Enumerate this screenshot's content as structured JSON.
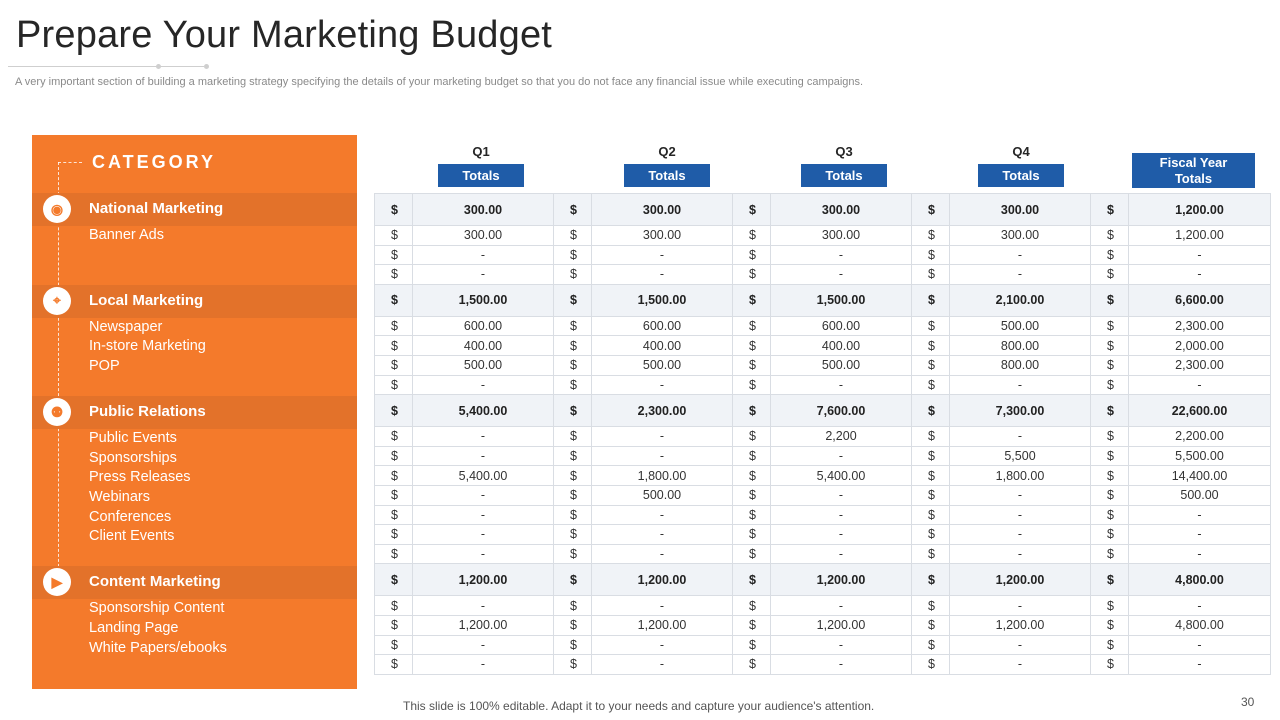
{
  "title": "Prepare Your Marketing Budget",
  "subtitle": "A very  important section of building a marketing strategy specifying the details of your  marketing budget so that you  do not face any financial issue while executing campaigns.",
  "category_heading": "CATEGORY",
  "columns": [
    {
      "quarter": "Q1",
      "label": "Totals"
    },
    {
      "quarter": "Q2",
      "label": "Totals"
    },
    {
      "quarter": "Q3",
      "label": "Totals"
    },
    {
      "quarter": "Q4",
      "label": "Totals"
    }
  ],
  "fiscal_label_line1": "Fiscal Year",
  "fiscal_label_line2": "Totals",
  "currency_symbol": "$",
  "accent_colors": {
    "panel": "#f47a2b",
    "header_button": "#1f5ca8"
  },
  "categories": [
    {
      "name": "National Marketing",
      "icon": "globe-megaphone-icon",
      "totals": [
        "300.00",
        "300.00",
        "300.00",
        "300.00",
        "1,200.00"
      ],
      "rows": [
        {
          "label": "Banner Ads",
          "values": [
            "300.00",
            "300.00",
            "300.00",
            "300.00",
            "1,200.00"
          ]
        },
        {
          "label": "",
          "values": [
            "-",
            "-",
            "-",
            "-",
            "-"
          ]
        },
        {
          "label": "",
          "values": [
            "-",
            "-",
            "-",
            "-",
            "-"
          ]
        }
      ]
    },
    {
      "name": "Local Marketing",
      "icon": "location-network-icon",
      "totals": [
        "1,500.00",
        "1,500.00",
        "1,500.00",
        "2,100.00",
        "6,600.00"
      ],
      "rows": [
        {
          "label": "Newspaper",
          "values": [
            "600.00",
            "600.00",
            "600.00",
            "500.00",
            "2,300.00"
          ]
        },
        {
          "label": "In-store Marketing",
          "values": [
            "400.00",
            "400.00",
            "400.00",
            "800.00",
            "2,000.00"
          ]
        },
        {
          "label": "POP",
          "values": [
            "500.00",
            "500.00",
            "500.00",
            "800.00",
            "2,300.00"
          ]
        },
        {
          "label": "",
          "values": [
            "-",
            "-",
            "-",
            "-",
            "-"
          ]
        }
      ]
    },
    {
      "name": "Public Relations",
      "icon": "people-network-icon",
      "totals": [
        "5,400.00",
        "2,300.00",
        "7,600.00",
        "7,300.00",
        "22,600.00"
      ],
      "rows": [
        {
          "label": "Public Events",
          "values": [
            "-",
            "-",
            "2,200",
            "-",
            "2,200.00"
          ]
        },
        {
          "label": "Sponsorships",
          "values": [
            "-",
            "-",
            "-",
            "5,500",
            "5,500.00"
          ]
        },
        {
          "label": "Press Releases",
          "values": [
            "5,400.00",
            "1,800.00",
            "5,400.00",
            "1,800.00",
            "14,400.00"
          ]
        },
        {
          "label": "Webinars",
          "values": [
            "-",
            "500.00",
            "-",
            "-",
            "500.00"
          ]
        },
        {
          "label": "Conferences",
          "values": [
            "-",
            "-",
            "-",
            "-",
            "-"
          ]
        },
        {
          "label": "Client Events",
          "values": [
            "-",
            "-",
            "-",
            "-",
            "-"
          ]
        },
        {
          "label": "",
          "values": [
            "-",
            "-",
            "-",
            "-",
            "-"
          ]
        }
      ]
    },
    {
      "name": "Content Marketing",
      "icon": "content-play-icon",
      "totals": [
        "1,200.00",
        "1,200.00",
        "1,200.00",
        "1,200.00",
        "4,800.00"
      ],
      "rows": [
        {
          "label": "Sponsorship Content",
          "values": [
            "-",
            "-",
            "-",
            "-",
            "-"
          ]
        },
        {
          "label": "Landing Page",
          "values": [
            "1,200.00",
            "1,200.00",
            "1,200.00",
            "1,200.00",
            "4,800.00"
          ]
        },
        {
          "label": "White Papers/ebooks",
          "values": [
            "-",
            "-",
            "-",
            "-",
            "-"
          ]
        },
        {
          "label": "",
          "values": [
            "-",
            "-",
            "-",
            "-",
            "-"
          ]
        }
      ]
    }
  ],
  "footer": "This slide is 100% editable. Adapt it to your needs and capture your audience's attention.",
  "page_number": "30"
}
